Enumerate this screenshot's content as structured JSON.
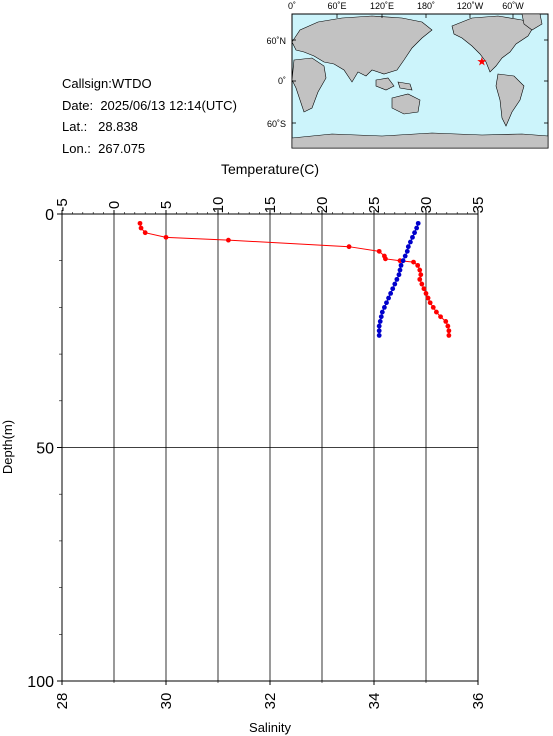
{
  "info": {
    "callsign_label": "Callsign:",
    "callsign": "WTDO",
    "date_label": "Date:",
    "date": "2025/06/13 12:14(UTC)",
    "lat_label": "Lat.:",
    "lat": "28.838",
    "lon_label": "Lon.:",
    "lon": "267.075"
  },
  "map": {
    "lon_ticks": [
      "0˚",
      "60˚E",
      "120˚E",
      "180˚",
      "120˚W",
      "60˚W"
    ],
    "lat_ticks": [
      "60˚N",
      "0˚",
      "60˚S"
    ],
    "ocean_color": "#ccf4fb",
    "land_color": "#c2c2c2",
    "marker_color": "#ff0000",
    "marker": {
      "lon": 267.075,
      "lat": 28.838
    }
  },
  "chart_data": {
    "type": "line",
    "title": "",
    "top_axis": {
      "label": "Temperature(C)",
      "range": [
        -5,
        35
      ],
      "ticks": [
        "-5",
        "0",
        "5",
        "10",
        "15",
        "20",
        "25",
        "30",
        "35"
      ],
      "values": [
        -5,
        0,
        5,
        10,
        15,
        20,
        25,
        30,
        35
      ]
    },
    "bottom_axis": {
      "label": "Salinity",
      "range": [
        28,
        36
      ],
      "ticks": [
        "28",
        "30",
        "32",
        "34",
        "36"
      ],
      "values": [
        28,
        30,
        32,
        34,
        36
      ]
    },
    "y_axis": {
      "label": "Depth(m)",
      "range": [
        0,
        100
      ],
      "inverted": true,
      "ticks": [
        "0",
        "50",
        "100"
      ],
      "values": [
        0,
        50,
        100
      ]
    },
    "grid": true,
    "series": [
      {
        "axis": "top",
        "color": "#ff0000",
        "points": [
          [
            2.5,
            2
          ],
          [
            2.6,
            3
          ],
          [
            3.0,
            4
          ],
          [
            5.0,
            5
          ],
          [
            11.0,
            5.6
          ],
          [
            22.6,
            7
          ],
          [
            25.5,
            8
          ],
          [
            26.0,
            9
          ],
          [
            26.1,
            9.6
          ],
          [
            27.5,
            10
          ],
          [
            28.8,
            10.3
          ],
          [
            29.2,
            11
          ],
          [
            29.4,
            12
          ],
          [
            29.5,
            13
          ],
          [
            29.4,
            14
          ],
          [
            29.6,
            15
          ],
          [
            29.8,
            16
          ],
          [
            30.0,
            17
          ],
          [
            30.2,
            18
          ],
          [
            30.4,
            19
          ],
          [
            30.7,
            20
          ],
          [
            31.0,
            21
          ],
          [
            31.4,
            22
          ],
          [
            31.9,
            23
          ],
          [
            32.1,
            24
          ],
          [
            32.2,
            25
          ],
          [
            32.2,
            26
          ]
        ]
      },
      {
        "axis": "bottom",
        "color": "#0000cc",
        "points": [
          [
            34.85,
            2
          ],
          [
            34.82,
            3
          ],
          [
            34.78,
            4
          ],
          [
            34.74,
            5
          ],
          [
            34.7,
            6
          ],
          [
            34.66,
            7
          ],
          [
            34.64,
            8
          ],
          [
            34.6,
            9
          ],
          [
            34.56,
            10
          ],
          [
            34.52,
            11
          ],
          [
            34.5,
            12
          ],
          [
            34.48,
            13
          ],
          [
            34.44,
            14
          ],
          [
            34.4,
            15
          ],
          [
            34.36,
            16
          ],
          [
            34.32,
            17
          ],
          [
            34.28,
            18
          ],
          [
            34.24,
            19
          ],
          [
            34.2,
            20
          ],
          [
            34.16,
            21
          ],
          [
            34.14,
            22
          ],
          [
            34.12,
            23
          ],
          [
            34.1,
            24
          ],
          [
            34.1,
            25
          ],
          [
            34.1,
            26
          ]
        ]
      }
    ]
  }
}
